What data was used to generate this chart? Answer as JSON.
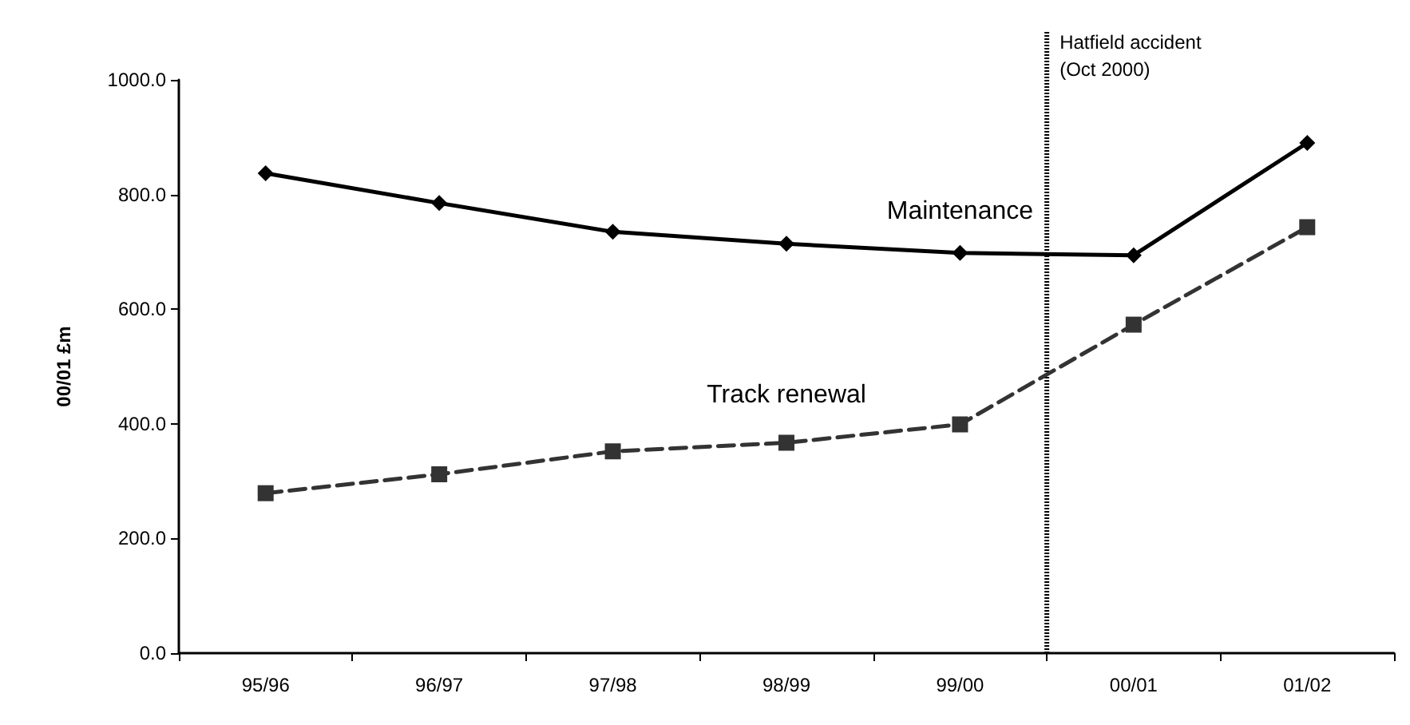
{
  "chart_data": {
    "type": "line",
    "ylabel": "00/01 £m",
    "categories": [
      "95/96",
      "96/97",
      "97/98",
      "98/99",
      "99/00",
      "00/01",
      "01/02"
    ],
    "series": [
      {
        "name": "Maintenance",
        "color": "#000000",
        "marker": "diamond",
        "line_style": "solid",
        "values": [
          837,
          785,
          735,
          714,
          698,
          694,
          890
        ]
      },
      {
        "name": "Track renewal",
        "color": "#333333",
        "marker": "square",
        "line_style": "dashed",
        "values": [
          279,
          312,
          352,
          367,
          399,
          573,
          743
        ]
      }
    ],
    "ylim": [
      0,
      1000
    ],
    "yticks": [
      {
        "value": 0,
        "label": "0.0"
      },
      {
        "value": 200,
        "label": "200.0"
      },
      {
        "value": 400,
        "label": "400.0"
      },
      {
        "value": 600,
        "label": "600.0"
      },
      {
        "value": 800,
        "label": "800.0"
      },
      {
        "value": 1000,
        "label": "1000.0"
      }
    ],
    "annotations": [
      "Hatfield accident\n(Oct 2000)"
    ],
    "legend": false
  }
}
